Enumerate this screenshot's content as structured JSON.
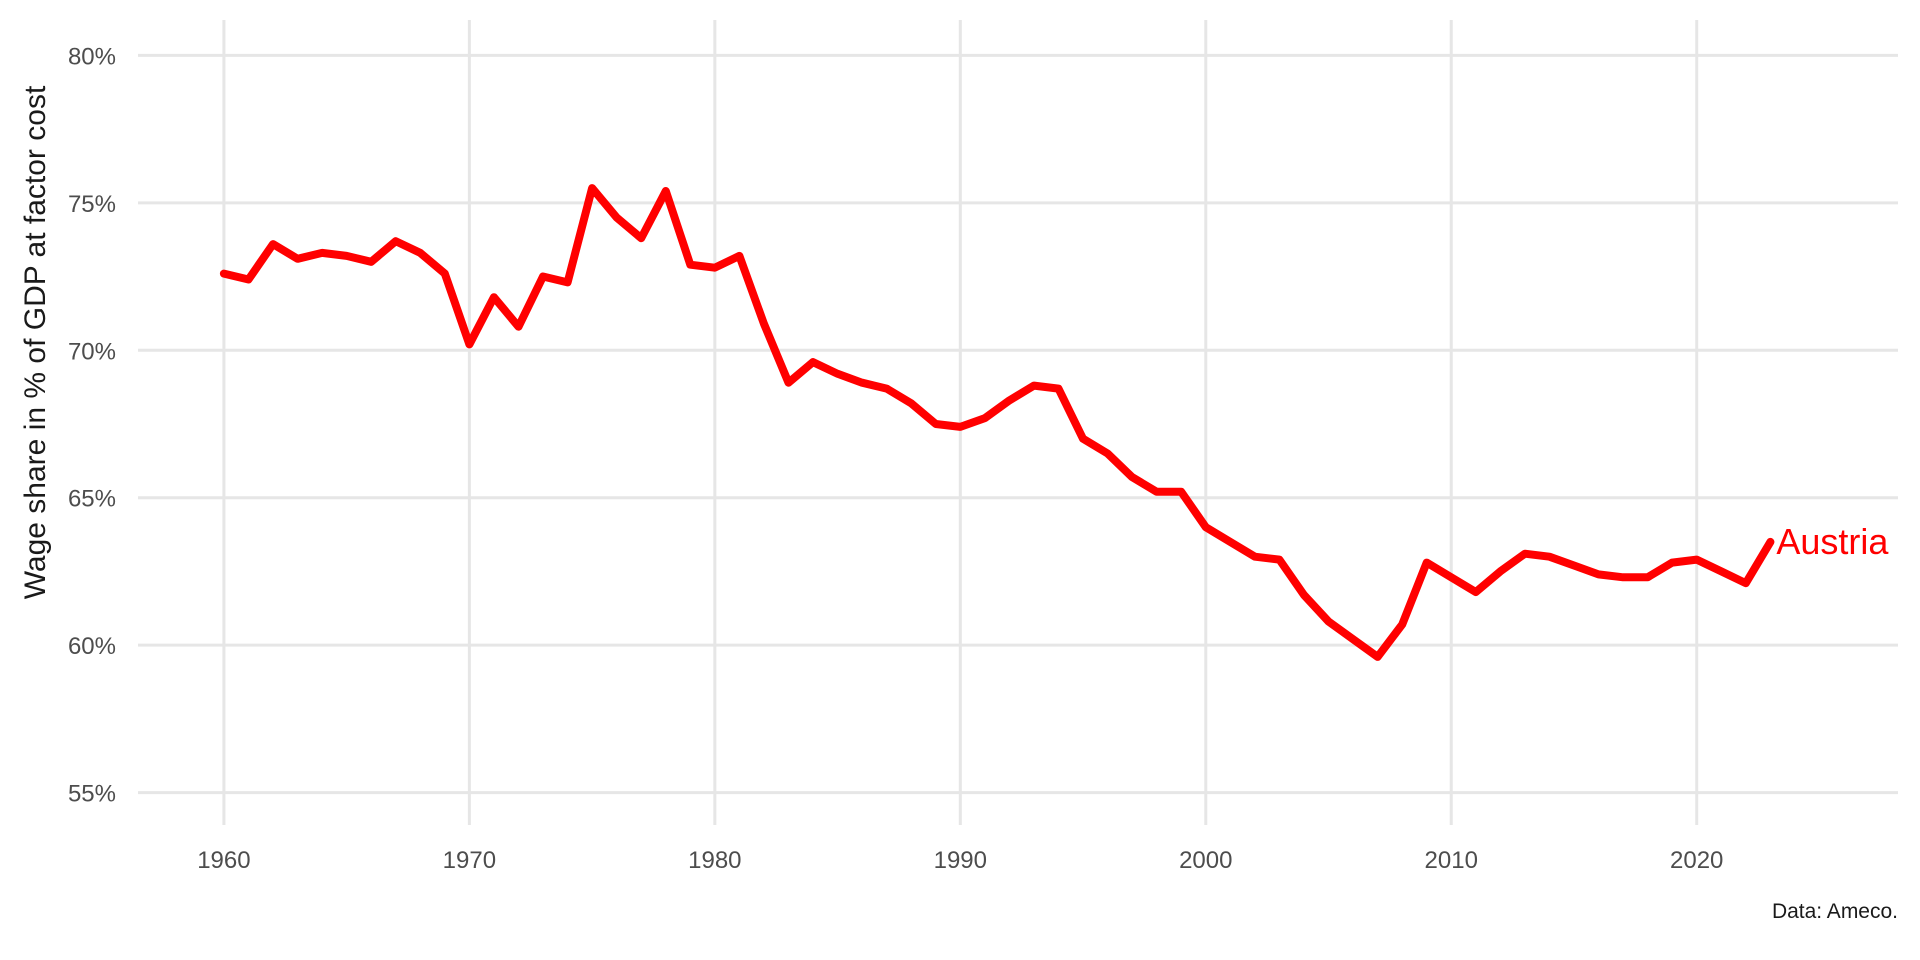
{
  "chart_data": {
    "type": "line",
    "title": "",
    "xlabel": "",
    "ylabel": "Wage share in % of GDP at factor cost",
    "caption": "Data: Ameco.",
    "xlim": [
      1956.5,
      2028.2
    ],
    "ylim": [
      53.9,
      81.2
    ],
    "x_ticks": [
      1960,
      1970,
      1980,
      1990,
      2000,
      2010,
      2020
    ],
    "x_tick_labels": [
      "1960",
      "1970",
      "1980",
      "1990",
      "2000",
      "2010",
      "2020"
    ],
    "y_ticks": [
      55,
      60,
      65,
      70,
      75,
      80
    ],
    "y_tick_labels": [
      "55%",
      "60%",
      "65%",
      "70%",
      "75%",
      "80%"
    ],
    "grid": true,
    "legend": "none",
    "series": [
      {
        "name": "Austria",
        "color": "#ff0000",
        "x": [
          1960,
          1961,
          1962,
          1963,
          1964,
          1965,
          1966,
          1967,
          1968,
          1969,
          1970,
          1971,
          1972,
          1973,
          1974,
          1975,
          1976,
          1977,
          1978,
          1979,
          1980,
          1981,
          1982,
          1983,
          1984,
          1985,
          1986,
          1987,
          1988,
          1989,
          1990,
          1991,
          1992,
          1993,
          1994,
          1995,
          1996,
          1997,
          1998,
          1999,
          2000,
          2001,
          2002,
          2003,
          2004,
          2005,
          2006,
          2007,
          2008,
          2009,
          2010,
          2011,
          2012,
          2013,
          2014,
          2015,
          2016,
          2017,
          2018,
          2019,
          2020,
          2021,
          2022,
          2023
        ],
        "values": [
          72.6,
          72.4,
          73.6,
          73.1,
          73.3,
          73.2,
          73.0,
          73.7,
          73.3,
          72.6,
          70.2,
          71.8,
          70.8,
          72.5,
          72.3,
          75.5,
          74.5,
          73.8,
          75.4,
          72.9,
          72.8,
          73.2,
          70.9,
          68.9,
          69.6,
          69.2,
          68.9,
          68.7,
          68.2,
          67.5,
          67.4,
          67.7,
          68.3,
          68.8,
          68.7,
          67.0,
          66.5,
          65.7,
          65.2,
          65.2,
          64.0,
          63.5,
          63.0,
          62.9,
          61.7,
          60.8,
          60.2,
          59.6,
          60.7,
          62.8,
          62.3,
          61.8,
          62.5,
          63.1,
          63.0,
          62.7,
          62.4,
          62.3,
          62.3,
          62.8,
          62.9,
          62.5,
          62.1,
          63.5
        ]
      }
    ]
  }
}
